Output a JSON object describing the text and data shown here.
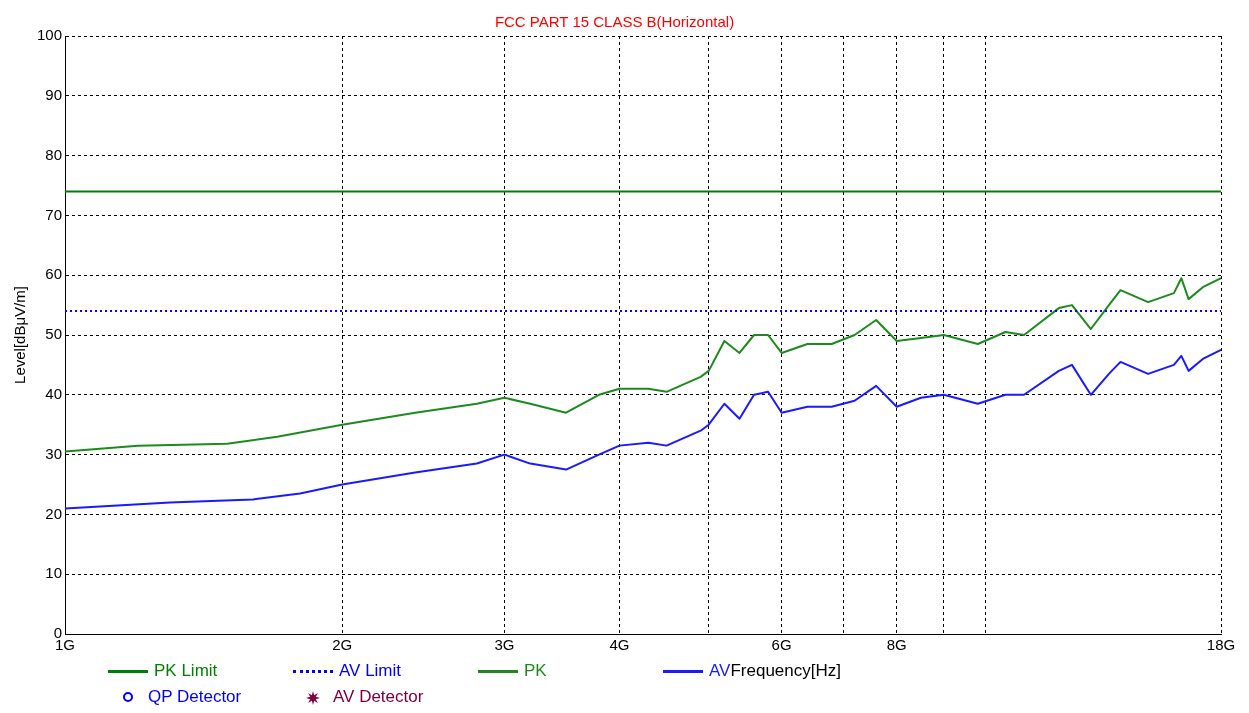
{
  "chart_data": {
    "type": "line",
    "title": "FCC PART 15 CLASS B(Horizontal)",
    "xlabel": "Frequency[Hz]",
    "ylabel": "Level[dBμV/m]",
    "log": "x",
    "grid": true,
    "legend": "bottom",
    "xlim": [
      1,
      18
    ],
    "xticks": [
      {
        "value": 1,
        "label": "1G"
      },
      {
        "value": 2,
        "label": "2G"
      },
      {
        "value": 3,
        "label": "3G"
      },
      {
        "value": 4,
        "label": "4G"
      },
      {
        "value": 5,
        "label": null
      },
      {
        "value": 6,
        "label": "6G"
      },
      {
        "value": 7,
        "label": null
      },
      {
        "value": 8,
        "label": "8G"
      },
      {
        "value": 9,
        "label": null
      },
      {
        "value": 10,
        "label": null
      },
      {
        "value": 18,
        "label": "18G"
      }
    ],
    "ylim": [
      0,
      100
    ],
    "yticks": [
      0,
      10,
      20,
      30,
      40,
      50,
      60,
      70,
      80,
      90,
      100
    ],
    "series": [
      {
        "name": "PK Limit",
        "type": "line",
        "color": "#008000",
        "line_style": "solid",
        "marker": "none",
        "x": [
          1,
          18
        ],
        "values": [
          74,
          74
        ]
      },
      {
        "name": "AV Limit",
        "type": "line",
        "color": "#0000ff",
        "line_style": "dotted",
        "marker": "none",
        "x": [
          1,
          18
        ],
        "values": [
          54,
          54
        ]
      },
      {
        "name": "PK",
        "type": "line",
        "color": "#1e8a1e",
        "line_style": "solid",
        "marker": "none",
        "x": [
          1,
          1.2,
          1.5,
          1.7,
          2.0,
          2.4,
          2.8,
          3.0,
          3.2,
          3.5,
          3.8,
          4.0,
          4.3,
          4.5,
          4.9,
          5.0,
          5.2,
          5.4,
          5.6,
          5.8,
          6.0,
          6.4,
          6.8,
          7.2,
          7.6,
          8.0,
          8.5,
          9.0,
          9.8,
          10.5,
          11.0,
          12.0,
          12.4,
          13.0,
          13.6,
          14.0,
          15.0,
          16.0,
          16.3,
          16.6,
          17.2,
          18.0
        ],
        "values": [
          30.5,
          31.5,
          31.8,
          33,
          35,
          37,
          38.5,
          39.5,
          38.5,
          37,
          40,
          41,
          41,
          40.5,
          43,
          44,
          49,
          47,
          50,
          50,
          47,
          48.5,
          48.5,
          50,
          52.5,
          49,
          49.5,
          50,
          48.5,
          50.5,
          50,
          54.5,
          55,
          51,
          55,
          57.5,
          55.5,
          57,
          59.5,
          56,
          58,
          59.5
        ]
      },
      {
        "name": "AV",
        "type": "line",
        "color": "#1a1aff",
        "line_style": "solid",
        "marker": "none",
        "x": [
          1,
          1.3,
          1.6,
          1.8,
          2.0,
          2.4,
          2.8,
          3.0,
          3.2,
          3.5,
          3.8,
          4.0,
          4.3,
          4.5,
          4.9,
          5.0,
          5.2,
          5.4,
          5.6,
          5.8,
          6.0,
          6.4,
          6.8,
          7.2,
          7.6,
          8.0,
          8.5,
          9.0,
          9.8,
          10.5,
          11.0,
          12.0,
          12.4,
          13.0,
          13.6,
          14.0,
          15.0,
          16.0,
          16.3,
          16.6,
          17.2,
          18.0
        ],
        "values": [
          21,
          22,
          22.5,
          23.5,
          25,
          27,
          28.5,
          30,
          28.5,
          27.5,
          30,
          31.5,
          32,
          31.5,
          34,
          35,
          38.5,
          36,
          40,
          40.5,
          37,
          38,
          38,
          39,
          41.5,
          38,
          39.5,
          40,
          38.5,
          40,
          40,
          44,
          45,
          40,
          43.5,
          45.5,
          43.5,
          45,
          46.5,
          44,
          46,
          47.5
        ]
      },
      {
        "name": "QP Detector",
        "type": "scatter",
        "color": "#0000ff",
        "marker": "circle"
      },
      {
        "name": "AV Detector",
        "type": "scatter",
        "color": "#800040",
        "marker": "star"
      }
    ]
  }
}
